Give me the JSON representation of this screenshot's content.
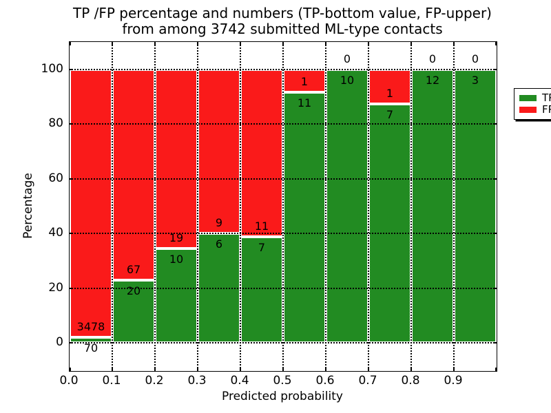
{
  "title": {
    "line1": "TP /FP percentage and numbers (TP-bottom value, FP-upper)",
    "line2": "from among 3742 submitted ML-type contacts"
  },
  "chart_data": {
    "type": "bar",
    "stacked": true,
    "title": "TP /FP percentage and numbers (TP-bottom value, FP-upper)\nfrom among 3742 submitted ML-type contacts",
    "xlabel": "Predicted probability",
    "ylabel": "Percentage",
    "xlim": [
      0.0,
      1.0
    ],
    "ylim": [
      -11,
      110
    ],
    "bar_width": 0.1,
    "grid": true,
    "x_tick_labels": [
      "0.0",
      "0.1",
      "0.2",
      "0.3",
      "0.4",
      "0.5",
      "0.6",
      "0.7",
      "0.8",
      "0.9"
    ],
    "y_ticks": [
      0,
      20,
      40,
      60,
      80,
      100
    ],
    "categories": [
      "0.0-0.1",
      "0.1-0.2",
      "0.2-0.3",
      "0.3-0.4",
      "0.4-0.5",
      "0.5-0.6",
      "0.6-0.7",
      "0.7-0.8",
      "0.8-0.9",
      "0.9-1.0"
    ],
    "series": [
      {
        "name": "TP",
        "color": "#228b22",
        "counts": [
          70,
          20,
          10,
          6,
          7,
          11,
          10,
          7,
          12,
          3
        ]
      },
      {
        "name": "FP",
        "color": "#fa1a1a",
        "counts": [
          3478,
          67,
          19,
          9,
          11,
          1,
          0,
          1,
          0,
          0
        ]
      }
    ],
    "bar_heights_note": "each bar spans 0 to 100 percent; TP segment height = TP/(TP+FP)*100",
    "legend": {
      "position": "upper right",
      "entries": [
        {
          "label": "TP",
          "color": "#228b22"
        },
        {
          "label": "FP",
          "color": "#fa1a1a"
        }
      ]
    }
  }
}
